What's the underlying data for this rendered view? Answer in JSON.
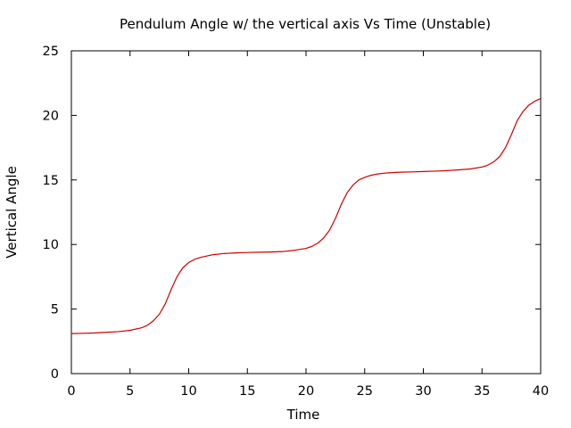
{
  "chart_data": {
    "type": "line",
    "title": "Pendulum Angle w/ the vertical axis Vs Time (Unstable)",
    "xlabel": "Time",
    "ylabel": "Vertical Angle",
    "xlim": [
      0,
      40
    ],
    "ylim": [
      0,
      25
    ],
    "x_ticks": [
      "0",
      "5",
      "10",
      "15",
      "20",
      "25",
      "30",
      "35",
      "40"
    ],
    "y_ticks": [
      "0",
      "5",
      "10",
      "15",
      "20",
      "25"
    ],
    "grid": false,
    "legend": "none",
    "series": [
      {
        "color": "#cc0000",
        "x": [
          0,
          1,
          2,
          3,
          4,
          5,
          6,
          6.5,
          7,
          7.5,
          8,
          8.5,
          9,
          9.5,
          10,
          10.5,
          11,
          12,
          13,
          14,
          15,
          16,
          17,
          18,
          19,
          20,
          20.5,
          21,
          21.5,
          22,
          22.5,
          23,
          23.5,
          24,
          24.5,
          25,
          25.5,
          26,
          27,
          28,
          29,
          30,
          31,
          32,
          33,
          34,
          35,
          35.5,
          36,
          36.5,
          37,
          37.5,
          38,
          38.5,
          39,
          39.5,
          40
        ],
        "values": [
          3.1,
          3.12,
          3.15,
          3.2,
          3.25,
          3.35,
          3.55,
          3.75,
          4.1,
          4.6,
          5.4,
          6.5,
          7.5,
          8.2,
          8.6,
          8.85,
          9.0,
          9.2,
          9.3,
          9.35,
          9.38,
          9.4,
          9.42,
          9.45,
          9.55,
          9.7,
          9.85,
          10.1,
          10.5,
          11.1,
          12.0,
          13.1,
          14.0,
          14.6,
          15.0,
          15.2,
          15.35,
          15.45,
          15.55,
          15.6,
          15.62,
          15.65,
          15.68,
          15.72,
          15.78,
          15.85,
          16.0,
          16.15,
          16.4,
          16.8,
          17.5,
          18.5,
          19.6,
          20.3,
          20.8,
          21.1,
          21.3
        ]
      }
    ]
  }
}
